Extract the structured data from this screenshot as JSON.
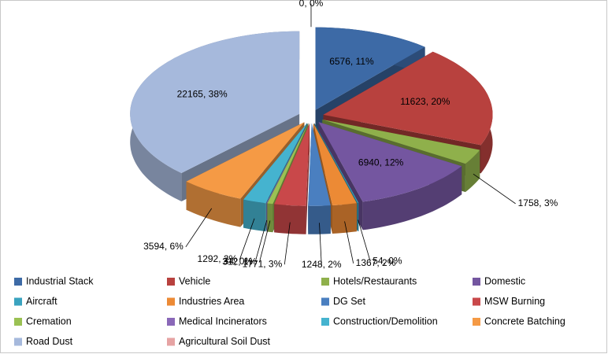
{
  "chart_data": {
    "type": "pie",
    "categories": [
      "Industrial Stack",
      "Vehicle",
      "Hotels/Restaurants",
      "Domestic",
      "Aircraft",
      "Industries Area",
      "DG Set",
      "MSW Burning",
      "Cremation",
      "Medical Incinerators",
      "Construction/Demolition",
      "Concrete Batching",
      "Road Dust",
      "Agricultural Soil Dust"
    ],
    "values": [
      6576,
      11623,
      1758,
      6940,
      54,
      1367,
      1248,
      1771,
      312,
      34,
      1292,
      3594,
      22165,
      0
    ],
    "value_labels": [
      "6576, 11%",
      "11623, 20%",
      "1758, 3%",
      "6940, 12%",
      "54, 0%",
      "1367, 2%",
      "1248, 2%",
      "1771, 3%",
      "312, 1%",
      "34, 0%",
      "1292, 2%",
      "3594, 6%",
      "22165, 38%",
      "0, 0%"
    ],
    "colors": [
      "#3d6aa6",
      "#b8413e",
      "#8fb04b",
      "#7456a0",
      "#3aa3bf",
      "#ec8a35",
      "#4a7fc0",
      "#c9484a",
      "#9ac153",
      "#8a68b8",
      "#45b3cf",
      "#f59a45",
      "#a6b9dc",
      "#e6a3a3"
    ],
    "legend": "bottom"
  }
}
